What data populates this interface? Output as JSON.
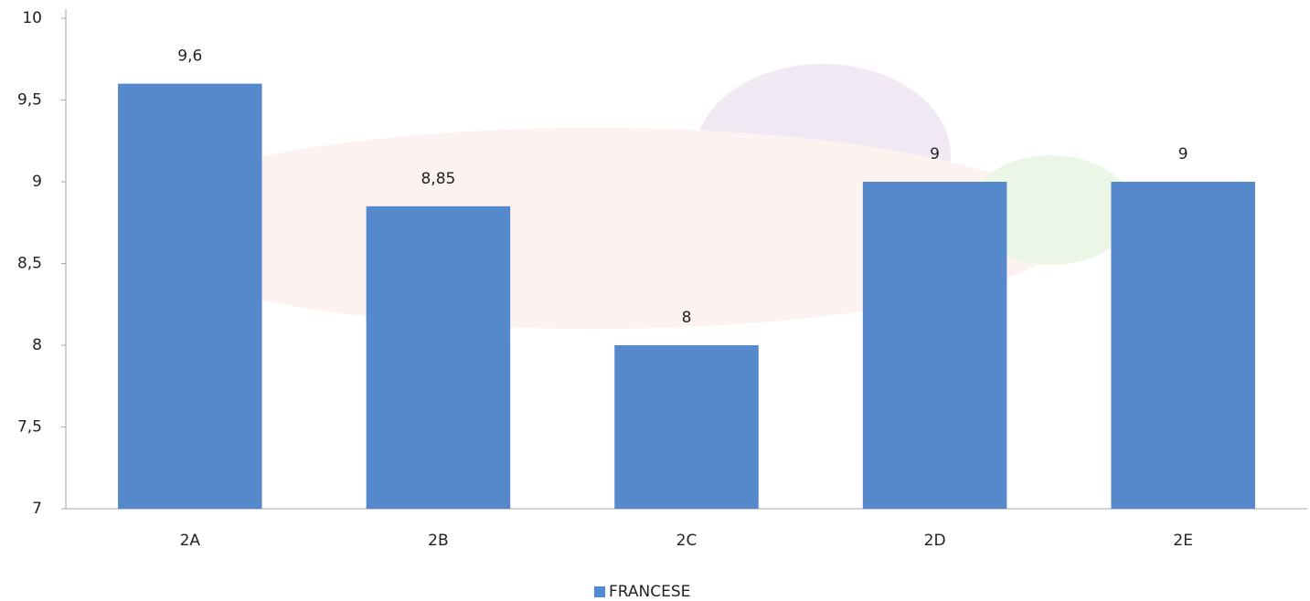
{
  "chart_data": {
    "type": "bar",
    "categories": [
      "2A",
      "2B",
      "2C",
      "2D",
      "2E"
    ],
    "series": [
      {
        "name": "FRANCESE",
        "color": "#5689cc",
        "values": [
          9.6,
          8.85,
          8,
          9,
          9
        ]
      }
    ],
    "value_labels": [
      "9,6",
      "8,85",
      "8",
      "9",
      "9"
    ],
    "ylim": [
      7,
      10
    ],
    "yticks": [
      7,
      {
        "value": 7.5,
        "label": "7,5"
      },
      8,
      {
        "value": 8.5,
        "label": "8,5"
      },
      9,
      {
        "value": 9.5,
        "label": "9,5"
      },
      10
    ],
    "legend": "bottom"
  }
}
